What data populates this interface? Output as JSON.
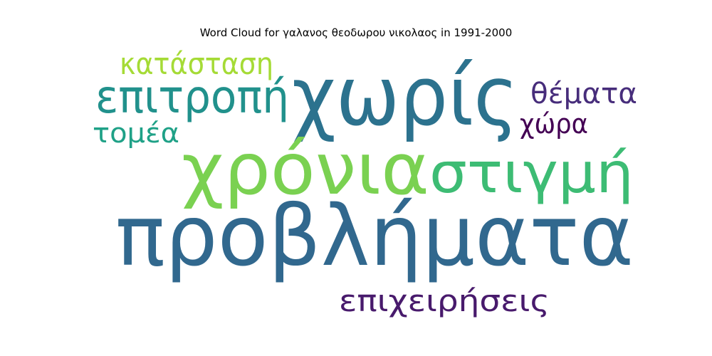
{
  "chart_data": {
    "type": "wordcloud",
    "title": "Word Cloud for γαλανος θεοδωρου νικολαος in 1991-2000",
    "words": [
      {
        "text": "προβλήματα",
        "color": "#31688e"
      },
      {
        "text": "χωρίς",
        "color": "#2c728e"
      },
      {
        "text": "χρόνια",
        "color": "#7ad151"
      },
      {
        "text": "στιγμή",
        "color": "#3dbc74"
      },
      {
        "text": "επιτροπή",
        "color": "#21918c"
      },
      {
        "text": "κατάσταση",
        "color": "#a5db36"
      },
      {
        "text": "θέματα",
        "color": "#472d7b"
      },
      {
        "text": "τομέα",
        "color": "#1fa187"
      },
      {
        "text": "χώρα",
        "color": "#440154"
      },
      {
        "text": "επιχειρήσεις",
        "color": "#481a6c"
      }
    ]
  }
}
